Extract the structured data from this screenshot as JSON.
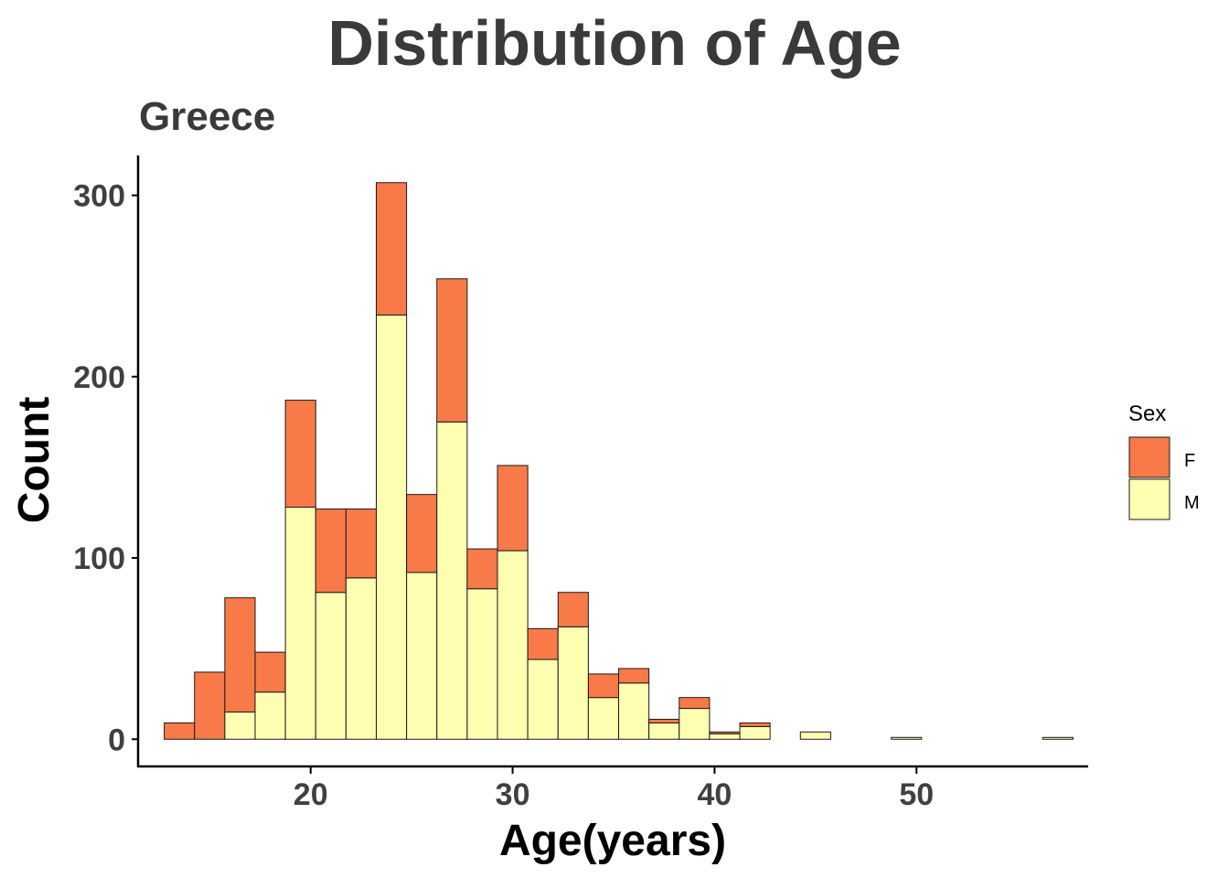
{
  "chart_data": {
    "type": "bar",
    "stacked": true,
    "title": "Distribution of Age",
    "subtitle": "Greece",
    "xlabel": "Age(years)",
    "ylabel": "Count",
    "xlim": [
      11.5,
      58.5
    ],
    "ylim": [
      -15,
      322
    ],
    "xticks": [
      20,
      30,
      40,
      50
    ],
    "yticks": [
      0,
      100,
      200,
      300
    ],
    "bin_width": 1.5,
    "bin_starts": [
      12.75,
      14.25,
      15.75,
      17.25,
      18.75,
      20.25,
      21.75,
      23.25,
      24.75,
      26.25,
      27.75,
      29.25,
      30.75,
      32.25,
      33.75,
      35.25,
      36.75,
      38.25,
      39.75,
      41.25,
      42.75,
      44.25,
      45.75,
      47.25,
      48.75,
      50.25,
      51.75,
      53.25,
      54.75,
      56.25
    ],
    "series": [
      {
        "name": "M",
        "color": "#FFFFB2",
        "values": [
          0,
          0,
          15,
          26,
          128,
          81,
          89,
          234,
          92,
          175,
          83,
          104,
          44,
          62,
          23,
          31,
          9,
          17,
          3,
          7,
          0,
          4,
          0,
          0,
          1,
          0,
          0,
          0,
          0,
          1
        ]
      },
      {
        "name": "F",
        "color": "#F87A48",
        "values": [
          9,
          37,
          63,
          22,
          59,
          46,
          38,
          73,
          43,
          79,
          22,
          47,
          17,
          19,
          13,
          8,
          2,
          6,
          1,
          2,
          0,
          0,
          0,
          0,
          0,
          0,
          0,
          0,
          0,
          0
        ]
      }
    ],
    "legend": {
      "title": "Sex",
      "position": "right",
      "entries": [
        "F",
        "M"
      ]
    },
    "grid": false
  }
}
